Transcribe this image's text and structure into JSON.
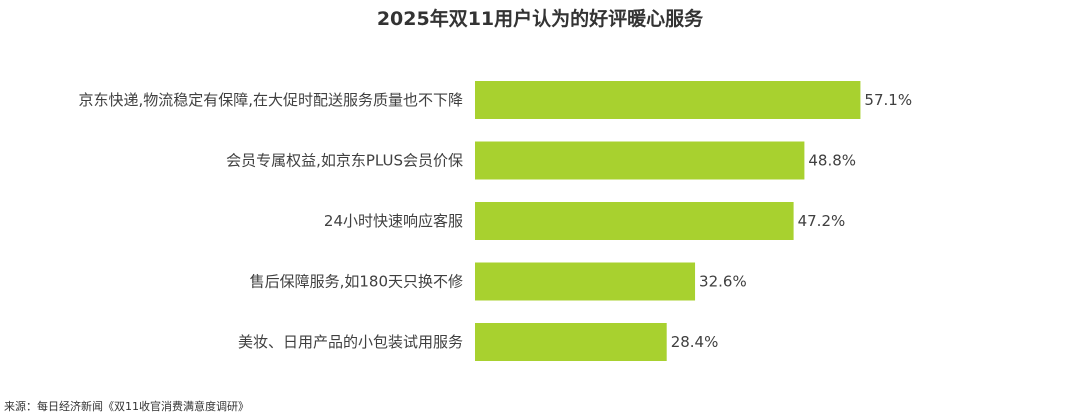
{
  "chart_data": {
    "type": "bar",
    "orientation": "horizontal",
    "title": "2025年双11用户认为的好评暖心服务",
    "categories": [
      "京东快递,物流稳定有保障,在大促时配送服务质量也不下降",
      "会员专属权益,如京东PLUS会员价保",
      "24小时快速响应客服",
      "售后保障服务,如180天只换不修",
      "美妆、日用产品的小包装试用服务"
    ],
    "values": [
      57.1,
      48.8,
      47.2,
      32.6,
      28.4
    ],
    "value_labels": [
      "57.1%",
      "48.8%",
      "47.2%",
      "32.6%",
      "28.4%"
    ],
    "value_unit": "%",
    "xlim": [
      0,
      60
    ],
    "grid": false,
    "legend": "none",
    "bar_color": "#a8d12f"
  },
  "source": "来源：每日经济新闻《双11收官消费满意度调研》"
}
